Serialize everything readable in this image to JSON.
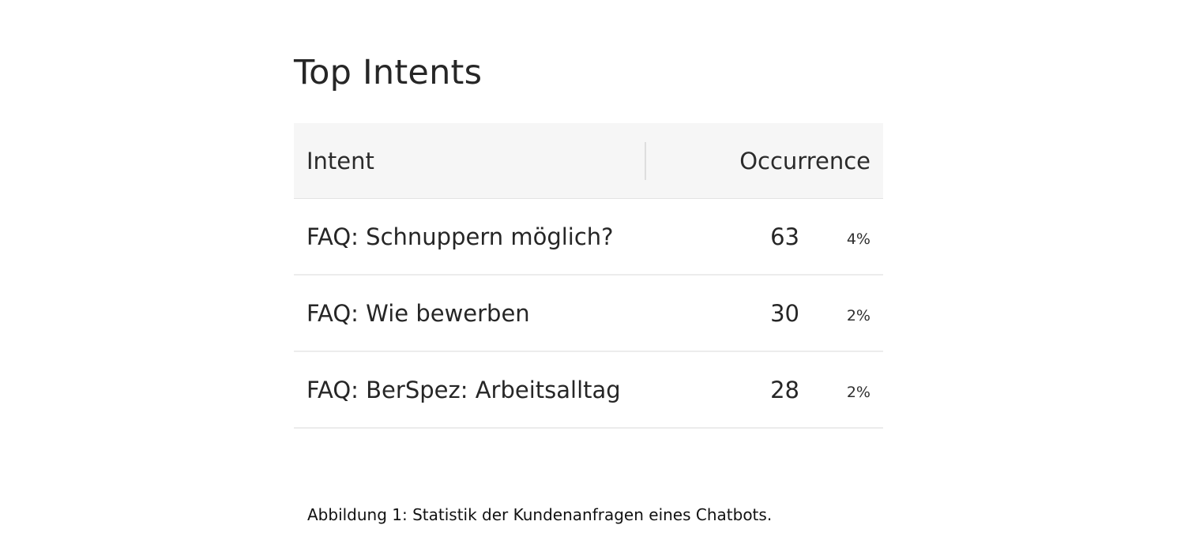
{
  "panel": {
    "title": "Top Intents",
    "table": {
      "columns": [
        "Intent",
        "Occurrence"
      ],
      "rows": [
        {
          "intent": "FAQ: Schnuppern möglich?",
          "count": "63",
          "percent": "4%"
        },
        {
          "intent": "FAQ: Wie bewerben",
          "count": "30",
          "percent": "2%"
        },
        {
          "intent": "FAQ: BerSpez: Arbeitsalltag",
          "count": "28",
          "percent": "2%"
        }
      ]
    }
  },
  "caption": "Abbildung 1: Statistik der Kundenanfragen eines Chatbots."
}
